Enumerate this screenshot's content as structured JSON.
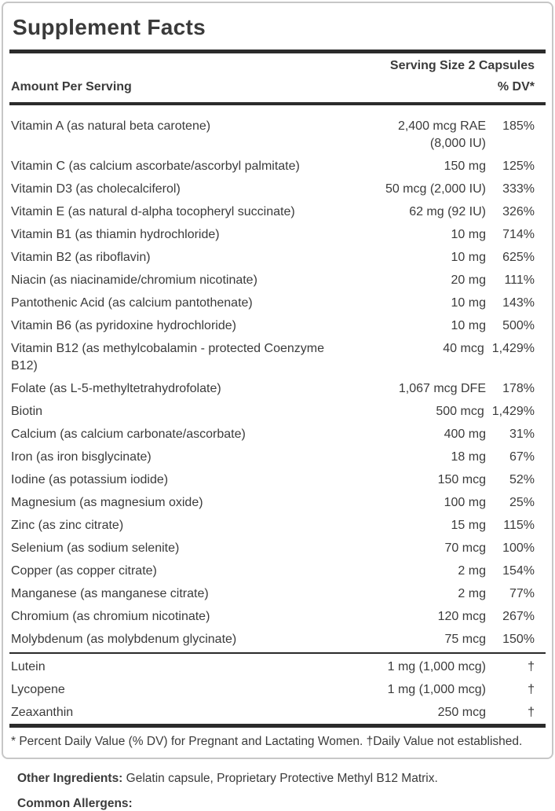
{
  "title": "Supplement Facts",
  "header": {
    "serving_size": "Serving Size 2 Capsules",
    "amount_col": "Amount Per Serving",
    "dv_col": "% DV*"
  },
  "colors": {
    "text": "#3b3b3b",
    "rule": "#2b2b2b",
    "border": "#c7c7c7",
    "background": "#ffffff"
  },
  "main_rows": [
    {
      "name": "Vitamin A (as natural beta carotene)",
      "amount": "2,400 mcg RAE",
      "amount2": "(8,000 IU)",
      "dv": "185%"
    },
    {
      "name": "Vitamin C (as calcium ascorbate/ascorbyl palmitate)",
      "amount": "150 mg",
      "dv": "125%"
    },
    {
      "name": "Vitamin D3 (as cholecalciferol)",
      "amount": "50 mcg (2,000 IU)",
      "dv": "333%"
    },
    {
      "name": "Vitamin E (as natural d-alpha tocopheryl succinate)",
      "amount": "62 mg (92 IU)",
      "dv": "326%"
    },
    {
      "name": "Vitamin B1 (as thiamin hydrochloride)",
      "amount": "10 mg",
      "dv": "714%"
    },
    {
      "name": "Vitamin B2 (as riboflavin)",
      "amount": "10 mg",
      "dv": "625%"
    },
    {
      "name": "Niacin (as niacinamide/chromium nicotinate)",
      "amount": "20 mg",
      "dv": "111%"
    },
    {
      "name": "Pantothenic Acid (as calcium pantothenate)",
      "amount": "10 mg",
      "dv": "143%"
    },
    {
      "name": "Vitamin B6 (as pyridoxine hydrochloride)",
      "amount": "10 mg",
      "dv": "500%"
    },
    {
      "name": "Vitamin B12 (as methylcobalamin - protected Coenzyme B12)",
      "amount": "40 mcg",
      "dv": "1,429%"
    },
    {
      "name": "Folate (as L-5-methyltetrahydrofolate)",
      "amount": "1,067 mcg DFE",
      "dv": "178%"
    },
    {
      "name": "Biotin",
      "amount": "500 mcg",
      "dv": "1,429%"
    },
    {
      "name": "Calcium (as calcium carbonate/ascorbate)",
      "amount": "400 mg",
      "dv": "31%"
    },
    {
      "name": "Iron (as iron bisglycinate)",
      "amount": "18 mg",
      "dv": "67%"
    },
    {
      "name": "Iodine (as potassium iodide)",
      "amount": "150 mcg",
      "dv": "52%"
    },
    {
      "name": "Magnesium (as magnesium oxide)",
      "amount": "100 mg",
      "dv": "25%"
    },
    {
      "name": "Zinc (as zinc citrate)",
      "amount": "15 mg",
      "dv": "115%"
    },
    {
      "name": "Selenium (as sodium selenite)",
      "amount": "70 mcg",
      "dv": "100%"
    },
    {
      "name": "Copper (as copper citrate)",
      "amount": "2 mg",
      "dv": "154%"
    },
    {
      "name": "Manganese (as manganese citrate)",
      "amount": "2 mg",
      "dv": "77%"
    },
    {
      "name": "Chromium (as chromium nicotinate)",
      "amount": "120 mcg",
      "dv": "267%"
    },
    {
      "name": "Molybdenum (as molybdenum glycinate)",
      "amount": "75 mcg",
      "dv": "150%"
    }
  ],
  "secondary_rows": [
    {
      "name": "Lutein",
      "amount": "1 mg (1,000 mcg)",
      "dv": "†"
    },
    {
      "name": "Lycopene",
      "amount": "1 mg (1,000 mcg)",
      "dv": "†"
    },
    {
      "name": "Zeaxanthin",
      "amount": "250 mcg",
      "dv": "†"
    }
  ],
  "footnote": "* Percent Daily Value (% DV) for Pregnant and Lactating Women. †Daily Value not established.",
  "other_ingredients": {
    "label": "Other Ingredients:",
    "text": " Gelatin capsule, Proprietary Protective Methyl B12 Matrix."
  },
  "allergens": {
    "label": "Common Allergens:"
  }
}
